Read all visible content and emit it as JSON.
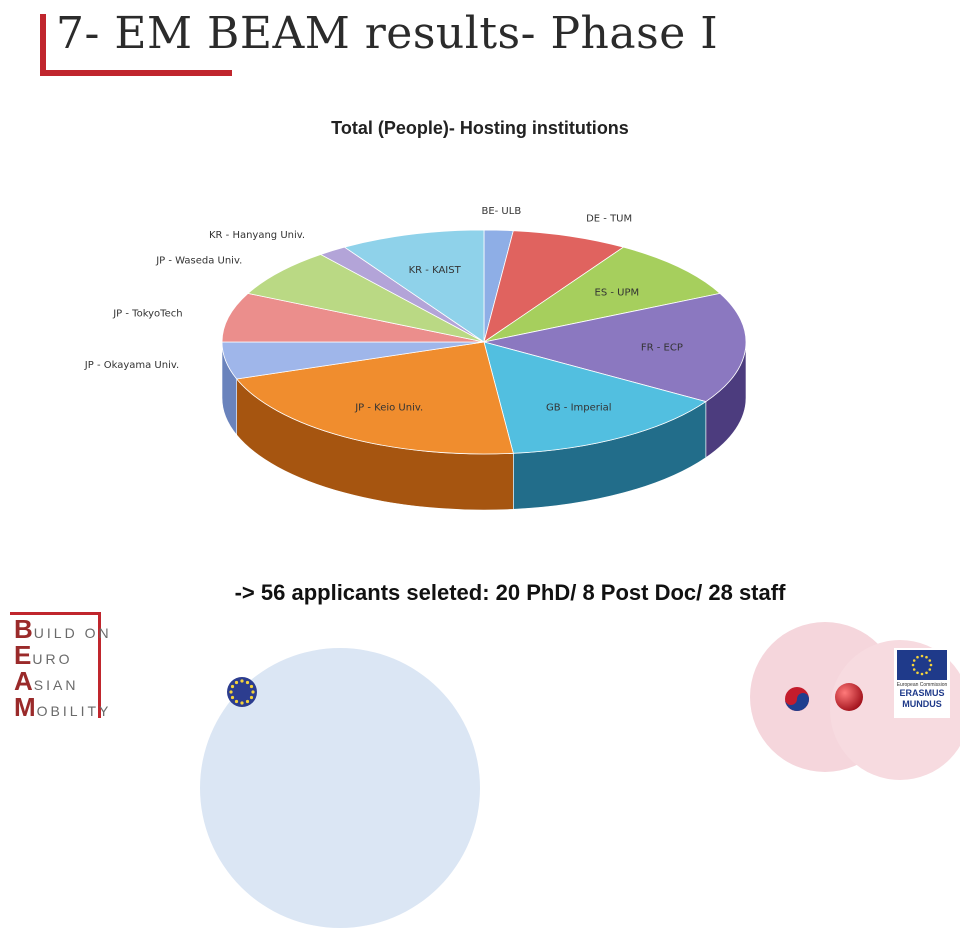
{
  "slide": {
    "title": "7- EM BEAM results- Phase I",
    "summary": "-> 56 applicants seleted: 20 PhD/ 8 Post Doc/ 28 staff"
  },
  "logo": {
    "rows": [
      {
        "cap": "B",
        "rest": "UILD ON"
      },
      {
        "cap": "E",
        "rest": "URO"
      },
      {
        "cap": "A",
        "rest": "SIAN"
      },
      {
        "cap": "M",
        "rest": "OBILITY"
      }
    ]
  },
  "badges": {
    "ec_line1": "European Commission",
    "ec_line2": "ERASMUS",
    "ec_line3": "MUNDUS"
  },
  "chart_data": {
    "type": "pie",
    "title": "Total (People)- Hosting institutions",
    "three_d": true,
    "legend": "none",
    "categories": [
      "BE- ULB",
      "DE - TUM",
      "ES - UPM",
      "FR - ECP",
      "GB - Imperial",
      "JP - Keio Univ.",
      "JP - Okayama Univ.",
      "JP - TokyoTech",
      "JP - Waseda Univ.",
      "KR - Hanyang Univ.",
      "KR - KAIST"
    ],
    "values": [
      1,
      4,
      5,
      9,
      8,
      12,
      3,
      4,
      4,
      1,
      5
    ],
    "colors": [
      "#8eaee6",
      "#e0635f",
      "#a6cf5d",
      "#8b78c0",
      "#52bfe0",
      "#f08d2e",
      "#9fb6ea",
      "#eb8e8c",
      "#bad984",
      "#b3a4d8",
      "#8fd2ea"
    ],
    "side_colors": [
      "#5c7ab4",
      "#9a2f2c",
      "#6e9130",
      "#4c3c7e",
      "#226d8a",
      "#a65510",
      "#6a83bc",
      "#b35755",
      "#7ea34c",
      "#7b6ca8",
      "#4f93ad"
    ]
  }
}
